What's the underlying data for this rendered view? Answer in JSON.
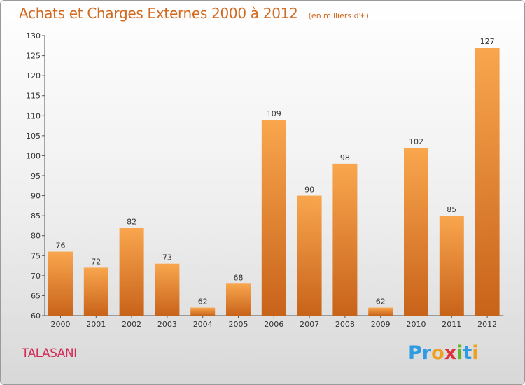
{
  "header": {
    "title": "Achats et Charges Externes 2000 à 2012",
    "unit": "(en milliers d'€)"
  },
  "commune": "TALASANI",
  "logo": {
    "letters": [
      "P",
      "r",
      "o",
      "x",
      "i",
      "t",
      "i"
    ],
    "colors": [
      "#2f9be3",
      "#2f9be3",
      "#f0a020",
      "#e0303a",
      "#5fb530",
      "#2f9be3",
      "#f0a020"
    ]
  },
  "colors": {
    "bar_light": "#f9a64e",
    "bar_dark": "#c8631a",
    "text": "#333333",
    "accent": "#d2691e",
    "commune": "#d22b55"
  },
  "chart_data": {
    "type": "bar",
    "title": "Achats et Charges Externes 2000 à 2012",
    "subtitle": "(en milliers d'€)",
    "categories": [
      "2000",
      "2001",
      "2002",
      "2003",
      "2004",
      "2005",
      "2006",
      "2007",
      "2008",
      "2009",
      "2010",
      "2011",
      "2012"
    ],
    "values": [
      76,
      72,
      82,
      73,
      62,
      68,
      109,
      90,
      98,
      62,
      102,
      85,
      127
    ],
    "ylim": [
      60,
      130
    ],
    "yticks": [
      60,
      65,
      70,
      75,
      80,
      85,
      90,
      95,
      100,
      105,
      110,
      115,
      120,
      125,
      130
    ],
    "grid": false,
    "legend": "none"
  }
}
